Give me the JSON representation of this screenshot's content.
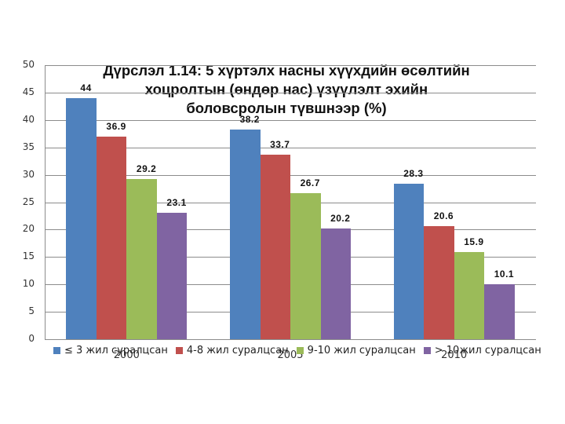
{
  "chart_data": {
    "type": "bar",
    "title": "Дүрслэл 1.14: 5 хүртэлх насны хүүхдийн өсөлтийн хоцролтын  (өндөр нас) үзүүлэлт эхийн боловсролын түвшнээр  (%)",
    "title_lines": [
      "Дүрслэл 1.14: 5 хүртэлх насны хүүхдийн өсөлтийн",
      "хоцролтын  (өндөр нас) үзүүлэлт эхийн",
      "боловсролын түвшнээр  (%)"
    ],
    "categories": [
      "2000",
      "2005",
      "2010"
    ],
    "series": [
      {
        "name": "≤ 3 жил суралцсан",
        "color": "#4F81BD",
        "values": [
          44,
          38.2,
          28.3
        ],
        "labels": [
          "44",
          "38.2",
          "28.3"
        ]
      },
      {
        "name": "4-8 жил суралцсан",
        "color": "#C0504D",
        "values": [
          36.9,
          33.7,
          20.6
        ],
        "labels": [
          "36.9",
          "33.7",
          "20.6"
        ]
      },
      {
        "name": "9-10 жил суралцсан",
        "color": "#9BBB59",
        "values": [
          29.2,
          26.7,
          15.9
        ],
        "labels": [
          "29.2",
          "26.7",
          "15.9"
        ]
      },
      {
        "name": "> 10жил суралцсан",
        "color": "#8064A2",
        "values": [
          23.1,
          20.2,
          10.1
        ],
        "labels": [
          "23.1",
          "20.2",
          "10.1"
        ]
      }
    ],
    "xlabel": "",
    "ylabel": "",
    "ylim": [
      0,
      50
    ],
    "yticks": [
      "0",
      "5",
      "10",
      "15",
      "20",
      "25",
      "30",
      "35",
      "40",
      "45",
      "50"
    ],
    "grid": true,
    "legend_position": "bottom"
  }
}
